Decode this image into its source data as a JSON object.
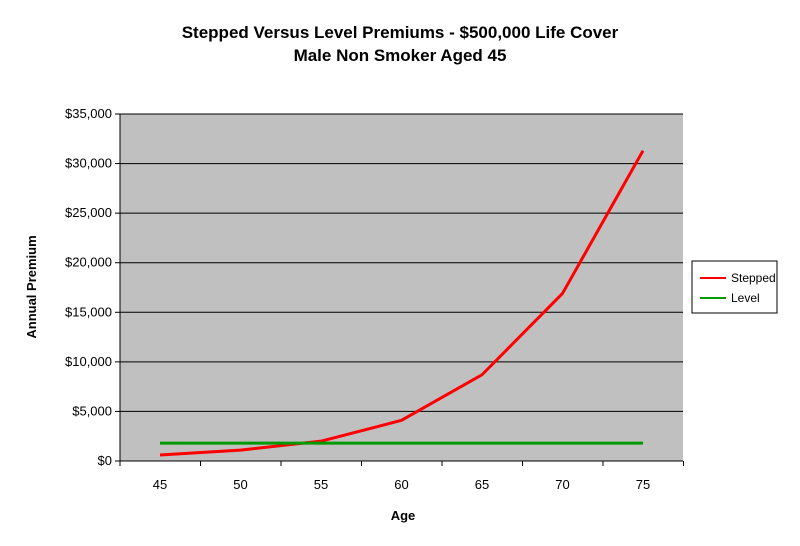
{
  "chart_data": {
    "type": "line",
    "title": [
      "Stepped Versus Level Premiums - $500,000 Life Cover",
      "Male Non Smoker Aged 45"
    ],
    "xlabel": "Age",
    "ylabel": "Annual Premium",
    "x": [
      45,
      50,
      55,
      60,
      65,
      70,
      75
    ],
    "x_tick_labels": [
      "45",
      "50",
      "55",
      "60",
      "65",
      "70",
      "75"
    ],
    "ylim": [
      0,
      35000
    ],
    "y_ticks": [
      0,
      5000,
      10000,
      15000,
      20000,
      25000,
      30000,
      35000
    ],
    "y_tick_labels": [
      "$0",
      "$5,000",
      "$10,000",
      "$15,000",
      "$20,000",
      "$25,000",
      "$30,000",
      "$35,000"
    ],
    "series": [
      {
        "name": "Stepped",
        "color": "#ff0000",
        "values": [
          600,
          1100,
          2000,
          4100,
          8700,
          16900,
          31300
        ]
      },
      {
        "name": "Level",
        "color": "#009900",
        "values": [
          1800,
          1800,
          1800,
          1800,
          1800,
          1800,
          1800
        ]
      }
    ],
    "grid": true,
    "plot_background": "#c0c0c0",
    "legend_position": "right"
  }
}
